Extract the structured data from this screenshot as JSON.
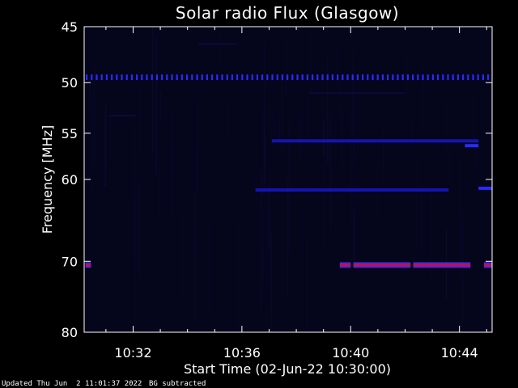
{
  "chart_data": {
    "type": "heatmap",
    "title": "Solar radio Flux (Glasgow)",
    "ylabel": "Frequency [MHz]",
    "xlabel": "Start Time (02-Jun-22 10:30:00)",
    "x_tick_labels": [
      "10:32",
      "10:36",
      "10:40",
      "10:44"
    ],
    "x_ticks_min": [
      2,
      6,
      10,
      14
    ],
    "xlim_min": [
      0.2,
      15.2
    ],
    "y_ticks": [
      45,
      50,
      55,
      60,
      70,
      80
    ],
    "y_tick_labels": [
      "45",
      "50",
      "55",
      "60",
      "70",
      "80"
    ],
    "ylim": [
      45,
      80
    ],
    "y_scale": "log",
    "y_inverted": true,
    "colors": {
      "background": "#05051c",
      "faint": "#0a0a3a",
      "medium": "#1414b4",
      "strong": "#2a2aff",
      "hot": "#b4145a"
    },
    "features": [
      {
        "name": "band-49.5",
        "freq": 49.5,
        "t_start": 0.2,
        "t_end": 15.2,
        "intensity": "dashed"
      },
      {
        "name": "band-55.8",
        "freq": 55.8,
        "t_start": 7.1,
        "t_end": 14.7,
        "intensity": "medium"
      },
      {
        "name": "band-56.3",
        "freq": 56.3,
        "t_start": 14.2,
        "t_end": 14.7,
        "intensity": "strong"
      },
      {
        "name": "band-61.2",
        "freq": 61.2,
        "t_start": 6.5,
        "t_end": 13.6,
        "intensity": "medium"
      },
      {
        "name": "band-61.0",
        "freq": 61.0,
        "t_start": 14.7,
        "t_end": 15.2,
        "intensity": "strong"
      },
      {
        "name": "band-70.5-a",
        "freq": 70.5,
        "t_start": 0.25,
        "t_end": 0.45,
        "intensity": "hot"
      },
      {
        "name": "band-70.5-b",
        "freq": 70.5,
        "t_start": 9.6,
        "t_end": 10.0,
        "intensity": "hot"
      },
      {
        "name": "band-70.5-c",
        "freq": 70.5,
        "t_start": 10.1,
        "t_end": 12.2,
        "intensity": "hot"
      },
      {
        "name": "band-70.5-d",
        "freq": 70.5,
        "t_start": 12.3,
        "t_end": 14.4,
        "intensity": "hot"
      },
      {
        "name": "band-70.5-e",
        "freq": 70.5,
        "t_start": 14.9,
        "t_end": 15.2,
        "intensity": "hot"
      },
      {
        "name": "band-53.2",
        "freq": 53.2,
        "t_start": 1.1,
        "t_end": 2.1,
        "intensity": "faint"
      },
      {
        "name": "band-51",
        "freq": 51.0,
        "t_start": 8.5,
        "t_end": 12.0,
        "intensity": "faint"
      },
      {
        "name": "band-46.5",
        "freq": 46.5,
        "t_start": 4.4,
        "t_end": 5.8,
        "intensity": "faint"
      }
    ]
  },
  "footer": {
    "updated": "Updated Thu Jun  2 11:01:37 2022",
    "note": "BG subtracted"
  }
}
